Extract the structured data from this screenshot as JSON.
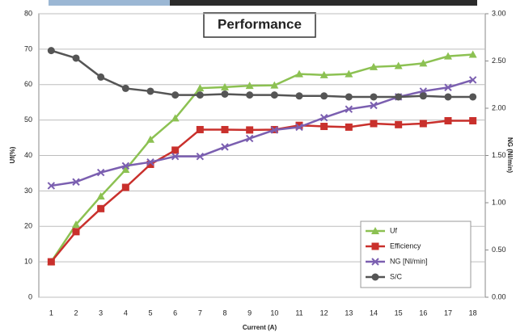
{
  "chart_data": {
    "type": "line",
    "title": "Performance",
    "x_label": "Current (A)",
    "y_label": "Uf(%)",
    "y2_label": "NG (Nl/min)",
    "categories": [
      "1",
      "2",
      "3",
      "4",
      "5",
      "6",
      "7",
      "8",
      "9",
      "10",
      "11",
      "12",
      "13",
      "14",
      "15",
      "16",
      "17",
      "18"
    ],
    "ylim": [
      0,
      80
    ],
    "yticks": [
      0,
      10,
      20,
      30,
      40,
      50,
      60,
      70,
      80
    ],
    "y2lim": [
      0,
      3
    ],
    "y2ticks": [
      {
        "value": 0,
        "label": "0.00"
      },
      {
        "value": 0.5,
        "label": "0.50"
      },
      {
        "value": 1,
        "label": "1.00"
      },
      {
        "value": 1.5,
        "label": "1.50"
      },
      {
        "value": 2,
        "label": "2.00"
      },
      {
        "value": 2.5,
        "label": "2.50"
      },
      {
        "value": 3,
        "label": "3.00"
      }
    ],
    "grid": true,
    "legend": "lower right",
    "series": [
      {
        "name": "Uf",
        "color": "#8cc152",
        "marker": "triangle",
        "values": [
          10,
          20.5,
          28.5,
          36,
          44.5,
          50.5,
          59,
          59.3,
          59.7,
          59.8,
          63,
          62.7,
          63,
          65,
          65.3,
          66,
          68,
          68.5
        ]
      },
      {
        "name": "Efficiency",
        "color": "#c9302c",
        "marker": "square",
        "values": [
          10,
          18.5,
          25,
          31,
          37.5,
          41.5,
          47.3,
          47.3,
          47.2,
          47.3,
          48.5,
          48.2,
          48,
          49,
          48.7,
          49,
          49.8,
          49.8
        ]
      },
      {
        "name": "NG [Nl/min]",
        "color": "#7b5fb0",
        "marker": "cross",
        "axis": "y2",
        "values": [
          1.18,
          1.22,
          1.32,
          1.39,
          1.43,
          1.49,
          1.49,
          1.59,
          1.68,
          1.77,
          1.8,
          1.9,
          1.99,
          2.03,
          2.12,
          2.18,
          2.22,
          2.3
        ]
      },
      {
        "name": "S/C",
        "color": "#555555",
        "marker": "circle",
        "axis": "y2",
        "values": [
          2.61,
          2.53,
          2.33,
          2.21,
          2.18,
          2.14,
          2.14,
          2.15,
          2.14,
          2.14,
          2.13,
          2.13,
          2.12,
          2.12,
          2.12,
          2.13,
          2.12,
          2.12
        ]
      }
    ]
  }
}
